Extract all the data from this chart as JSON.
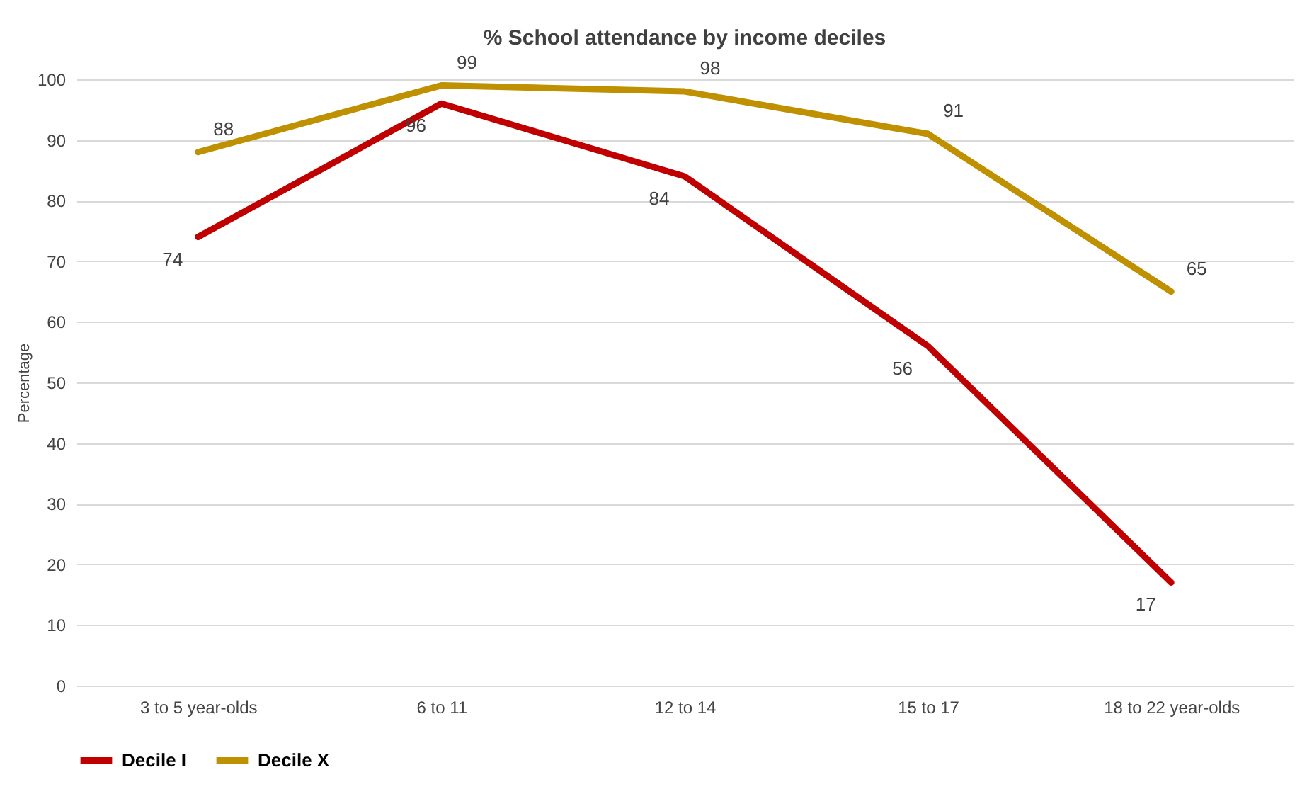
{
  "chart_data": {
    "type": "line",
    "title": "% School attendance by income deciles",
    "ylabel": "Percentage",
    "categories": [
      "3 to 5 year-olds",
      "6 to 11",
      "12 to 14",
      "15 to 17",
      "18 to 22 year-olds"
    ],
    "series": [
      {
        "name": "Decile I",
        "color": "#c00000",
        "values": [
          74,
          96,
          84,
          56,
          17
        ]
      },
      {
        "name": "Decile X",
        "color": "#bf9000",
        "values": [
          88,
          99,
          98,
          91,
          65
        ]
      }
    ],
    "ylim": [
      0,
      100
    ],
    "yticks": [
      0,
      10,
      20,
      30,
      40,
      50,
      60,
      70,
      80,
      90,
      100
    ],
    "grid": "y",
    "legend": "bottom",
    "data_labels": true,
    "marker": "none",
    "line_style": "solid"
  }
}
